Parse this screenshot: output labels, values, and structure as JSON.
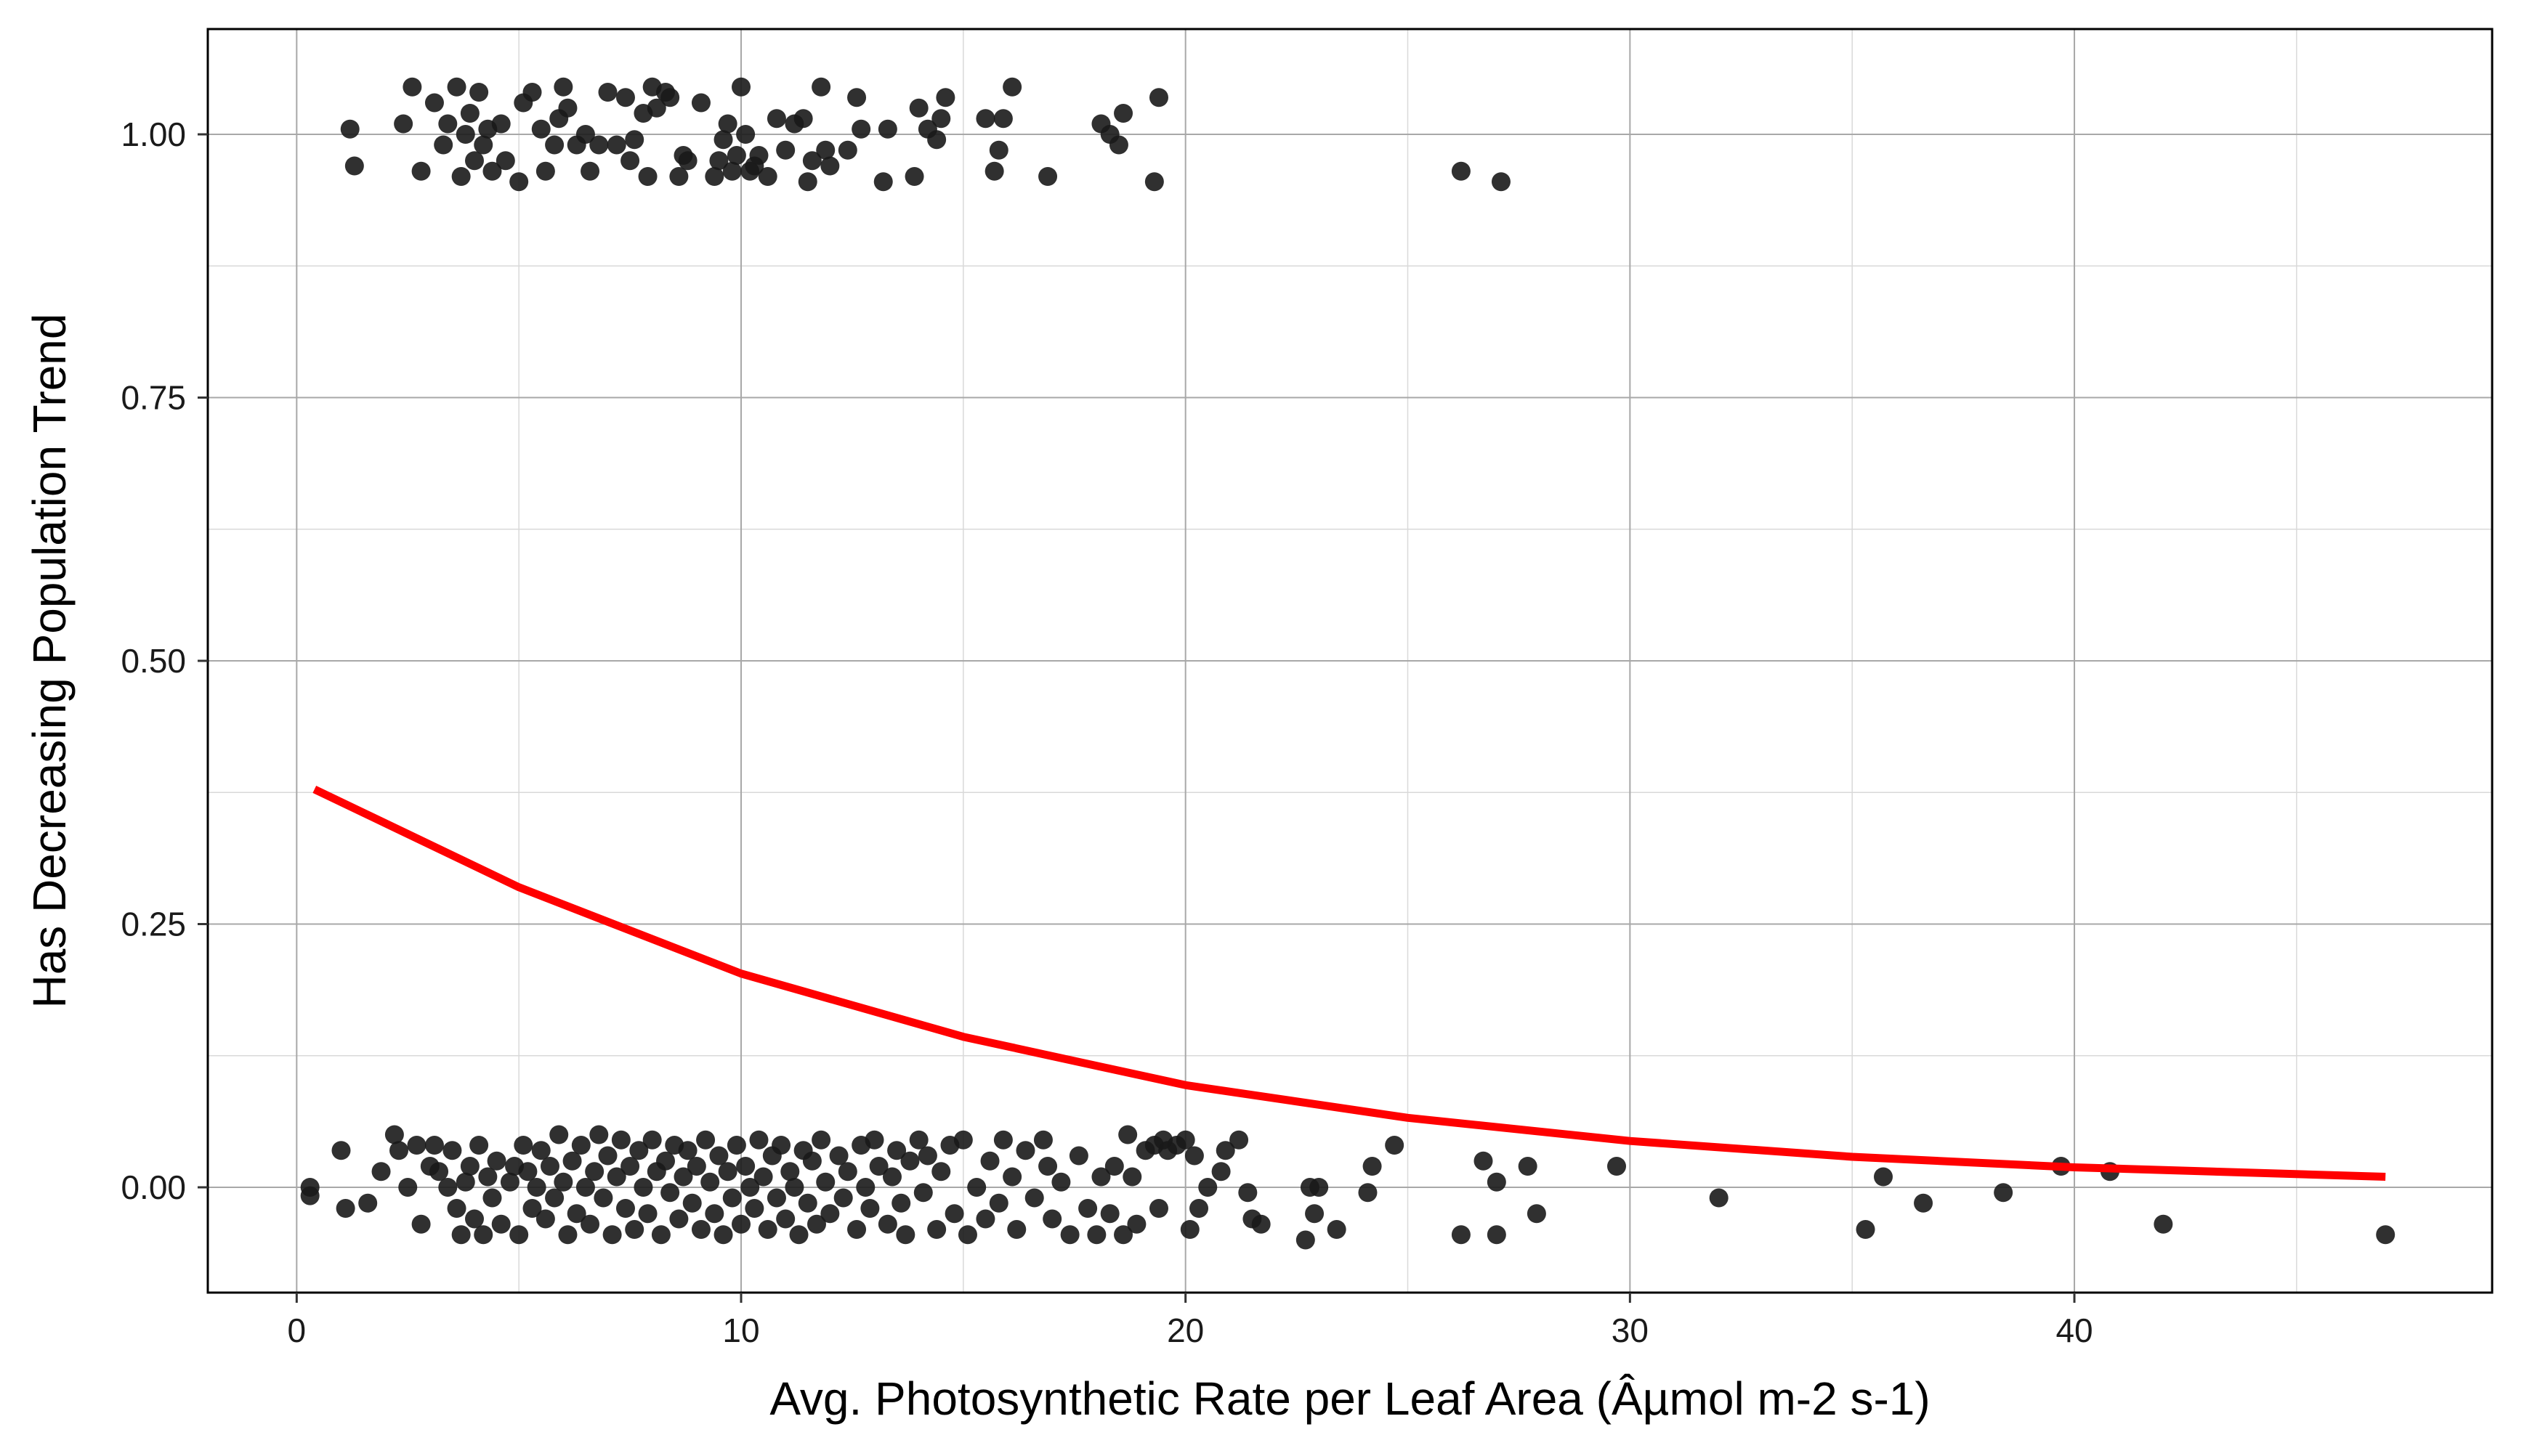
{
  "chart_data": {
    "type": "scatter",
    "title": "",
    "xlabel": "Avg. Photosynthetic Rate per Leaf Area (Âµmol m-2 s-1)",
    "ylabel": "Has Decreasing Population Trend",
    "xlim": [
      -2,
      49.4
    ],
    "ylim": [
      -0.1,
      1.1
    ],
    "x_ticks": [
      0,
      10,
      20,
      30,
      40
    ],
    "x_tick_labels": [
      "0",
      "10",
      "20",
      "30",
      "40"
    ],
    "y_ticks": [
      0,
      0.25,
      0.5,
      0.75,
      1.0
    ],
    "y_tick_labels": [
      "0.00",
      "0.25",
      "0.50",
      "0.75",
      "1.00"
    ],
    "x_minor_ticks": [
      5,
      15,
      25,
      35,
      45
    ],
    "y_minor_ticks": [
      0.125,
      0.375,
      0.625,
      0.875
    ],
    "grid": true,
    "legend": "none",
    "series": [
      {
        "kind": "points",
        "color": "#1a1a1a",
        "points": [
          [
            1.2,
            1.005
          ],
          [
            1.3,
            0.97
          ],
          [
            2.4,
            1.01
          ],
          [
            2.6,
            1.045
          ],
          [
            2.8,
            0.965
          ],
          [
            3.1,
            1.03
          ],
          [
            3.3,
            0.99
          ],
          [
            3.4,
            1.01
          ],
          [
            3.6,
            1.045
          ],
          [
            3.7,
            0.96
          ],
          [
            3.8,
            1.0
          ],
          [
            3.9,
            1.02
          ],
          [
            4.0,
            0.975
          ],
          [
            4.1,
            1.04
          ],
          [
            4.2,
            0.99
          ],
          [
            4.3,
            1.005
          ],
          [
            4.4,
            0.965
          ],
          [
            4.6,
            1.01
          ],
          [
            4.7,
            0.975
          ],
          [
            5.0,
            0.955
          ],
          [
            5.1,
            1.03
          ],
          [
            5.3,
            1.04
          ],
          [
            5.5,
            1.005
          ],
          [
            5.6,
            0.965
          ],
          [
            5.8,
            0.99
          ],
          [
            5.9,
            1.015
          ],
          [
            6.0,
            1.045
          ],
          [
            6.1,
            1.025
          ],
          [
            6.3,
            0.99
          ],
          [
            6.5,
            1.0
          ],
          [
            6.6,
            0.965
          ],
          [
            6.8,
            0.99
          ],
          [
            7.0,
            1.04
          ],
          [
            7.2,
            0.99
          ],
          [
            7.4,
            1.035
          ],
          [
            7.5,
            0.975
          ],
          [
            7.6,
            0.995
          ],
          [
            7.8,
            1.02
          ],
          [
            7.9,
            0.96
          ],
          [
            8.0,
            1.045
          ],
          [
            8.1,
            1.025
          ],
          [
            8.3,
            1.04
          ],
          [
            8.4,
            1.035
          ],
          [
            8.6,
            0.96
          ],
          [
            8.7,
            0.98
          ],
          [
            8.8,
            0.975
          ],
          [
            9.1,
            1.03
          ],
          [
            9.4,
            0.96
          ],
          [
            9.5,
            0.975
          ],
          [
            9.6,
            0.995
          ],
          [
            9.7,
            1.01
          ],
          [
            9.8,
            0.965
          ],
          [
            9.9,
            0.98
          ],
          [
            10.0,
            1.045
          ],
          [
            10.1,
            1.0
          ],
          [
            10.2,
            0.965
          ],
          [
            10.3,
            0.97
          ],
          [
            10.4,
            0.98
          ],
          [
            10.6,
            0.96
          ],
          [
            10.8,
            1.015
          ],
          [
            11.0,
            0.985
          ],
          [
            11.2,
            1.01
          ],
          [
            11.4,
            1.015
          ],
          [
            11.5,
            0.955
          ],
          [
            11.6,
            0.975
          ],
          [
            11.8,
            1.045
          ],
          [
            11.9,
            0.985
          ],
          [
            12.0,
            0.97
          ],
          [
            12.4,
            0.985
          ],
          [
            12.6,
            1.035
          ],
          [
            12.7,
            1.005
          ],
          [
            13.2,
            0.955
          ],
          [
            13.3,
            1.005
          ],
          [
            13.9,
            0.96
          ],
          [
            14.0,
            1.025
          ],
          [
            14.2,
            1.005
          ],
          [
            14.4,
            0.995
          ],
          [
            14.5,
            1.015
          ],
          [
            14.6,
            1.035
          ],
          [
            15.5,
            1.015
          ],
          [
            15.7,
            0.965
          ],
          [
            15.8,
            0.985
          ],
          [
            15.9,
            1.015
          ],
          [
            16.1,
            1.045
          ],
          [
            16.9,
            0.96
          ],
          [
            18.1,
            1.01
          ],
          [
            18.3,
            1.0
          ],
          [
            18.5,
            0.99
          ],
          [
            18.6,
            1.02
          ],
          [
            19.3,
            0.955
          ],
          [
            19.4,
            1.035
          ],
          [
            26.2,
            0.965
          ],
          [
            27.1,
            0.955
          ],
          [
            0.3,
            0.0
          ],
          [
            0.3,
            -0.008
          ],
          [
            1.0,
            0.035
          ],
          [
            1.1,
            -0.02
          ],
          [
            1.6,
            -0.015
          ],
          [
            1.9,
            0.015
          ],
          [
            2.2,
            0.05
          ],
          [
            2.3,
            0.035
          ],
          [
            2.5,
            0.0
          ],
          [
            2.7,
            0.04
          ],
          [
            2.8,
            -0.035
          ],
          [
            3.0,
            0.02
          ],
          [
            3.1,
            0.04
          ],
          [
            3.2,
            0.015
          ],
          [
            3.4,
            0.0
          ],
          [
            3.5,
            0.035
          ],
          [
            3.6,
            -0.02
          ],
          [
            3.7,
            -0.045
          ],
          [
            3.8,
            0.005
          ],
          [
            3.9,
            0.02
          ],
          [
            4.0,
            -0.03
          ],
          [
            4.1,
            0.04
          ],
          [
            4.2,
            -0.045
          ],
          [
            4.3,
            0.01
          ],
          [
            4.4,
            -0.01
          ],
          [
            4.5,
            0.025
          ],
          [
            4.6,
            -0.035
          ],
          [
            4.8,
            0.005
          ],
          [
            4.9,
            0.02
          ],
          [
            5.0,
            -0.045
          ],
          [
            5.1,
            0.04
          ],
          [
            5.2,
            0.015
          ],
          [
            5.3,
            -0.02
          ],
          [
            5.4,
            0.0
          ],
          [
            5.5,
            0.035
          ],
          [
            5.6,
            -0.03
          ],
          [
            5.7,
            0.02
          ],
          [
            5.8,
            -0.01
          ],
          [
            5.9,
            0.05
          ],
          [
            6.0,
            0.005
          ],
          [
            6.1,
            -0.045
          ],
          [
            6.2,
            0.025
          ],
          [
            6.3,
            -0.025
          ],
          [
            6.4,
            0.04
          ],
          [
            6.5,
            0.0
          ],
          [
            6.6,
            -0.035
          ],
          [
            6.7,
            0.015
          ],
          [
            6.8,
            0.05
          ],
          [
            6.9,
            -0.01
          ],
          [
            7.0,
            0.03
          ],
          [
            7.1,
            -0.045
          ],
          [
            7.2,
            0.01
          ],
          [
            7.3,
            0.045
          ],
          [
            7.4,
            -0.02
          ],
          [
            7.5,
            0.02
          ],
          [
            7.6,
            -0.04
          ],
          [
            7.7,
            0.035
          ],
          [
            7.8,
            0.0
          ],
          [
            7.9,
            -0.025
          ],
          [
            8.0,
            0.045
          ],
          [
            8.1,
            0.015
          ],
          [
            8.2,
            -0.045
          ],
          [
            8.3,
            0.025
          ],
          [
            8.4,
            -0.005
          ],
          [
            8.5,
            0.04
          ],
          [
            8.6,
            -0.03
          ],
          [
            8.7,
            0.01
          ],
          [
            8.8,
            0.035
          ],
          [
            8.9,
            -0.015
          ],
          [
            9.0,
            0.02
          ],
          [
            9.1,
            -0.04
          ],
          [
            9.2,
            0.045
          ],
          [
            9.3,
            0.005
          ],
          [
            9.4,
            -0.025
          ],
          [
            9.5,
            0.03
          ],
          [
            9.6,
            -0.045
          ],
          [
            9.7,
            0.015
          ],
          [
            9.8,
            -0.01
          ],
          [
            9.9,
            0.04
          ],
          [
            10.0,
            -0.035
          ],
          [
            10.1,
            0.02
          ],
          [
            10.2,
            0.0
          ],
          [
            10.3,
            -0.02
          ],
          [
            10.4,
            0.045
          ],
          [
            10.5,
            0.01
          ],
          [
            10.6,
            -0.04
          ],
          [
            10.7,
            0.03
          ],
          [
            10.8,
            -0.01
          ],
          [
            10.9,
            0.04
          ],
          [
            11.0,
            -0.03
          ],
          [
            11.1,
            0.015
          ],
          [
            11.2,
            0.0
          ],
          [
            11.3,
            -0.045
          ],
          [
            11.4,
            0.035
          ],
          [
            11.5,
            -0.015
          ],
          [
            11.6,
            0.025
          ],
          [
            11.7,
            -0.035
          ],
          [
            11.8,
            0.045
          ],
          [
            11.9,
            0.005
          ],
          [
            12.0,
            -0.025
          ],
          [
            12.2,
            0.03
          ],
          [
            12.3,
            -0.01
          ],
          [
            12.4,
            0.015
          ],
          [
            12.6,
            -0.04
          ],
          [
            12.7,
            0.04
          ],
          [
            12.8,
            0.0
          ],
          [
            12.9,
            -0.02
          ],
          [
            13.0,
            0.045
          ],
          [
            13.1,
            0.02
          ],
          [
            13.3,
            -0.035
          ],
          [
            13.4,
            0.01
          ],
          [
            13.5,
            0.035
          ],
          [
            13.6,
            -0.015
          ],
          [
            13.7,
            -0.045
          ],
          [
            13.8,
            0.025
          ],
          [
            14.0,
            0.045
          ],
          [
            14.1,
            -0.005
          ],
          [
            14.2,
            0.03
          ],
          [
            14.4,
            -0.04
          ],
          [
            14.5,
            0.015
          ],
          [
            14.7,
            0.04
          ],
          [
            14.8,
            -0.025
          ],
          [
            15.0,
            0.045
          ],
          [
            15.1,
            -0.045
          ],
          [
            15.3,
            0.0
          ],
          [
            15.5,
            -0.03
          ],
          [
            15.6,
            0.025
          ],
          [
            15.8,
            -0.015
          ],
          [
            15.9,
            0.045
          ],
          [
            16.1,
            0.01
          ],
          [
            16.2,
            -0.04
          ],
          [
            16.4,
            0.035
          ],
          [
            16.6,
            -0.01
          ],
          [
            16.8,
            0.045
          ],
          [
            16.9,
            0.02
          ],
          [
            17.0,
            -0.03
          ],
          [
            17.2,
            0.005
          ],
          [
            17.4,
            -0.045
          ],
          [
            17.6,
            0.03
          ],
          [
            17.8,
            -0.02
          ],
          [
            18.0,
            -0.045
          ],
          [
            18.1,
            0.01
          ],
          [
            18.3,
            -0.025
          ],
          [
            18.4,
            0.02
          ],
          [
            18.6,
            -0.045
          ],
          [
            18.7,
            0.05
          ],
          [
            18.8,
            0.01
          ],
          [
            18.9,
            -0.035
          ],
          [
            19.1,
            0.035
          ],
          [
            19.3,
            0.04
          ],
          [
            19.4,
            -0.02
          ],
          [
            19.5,
            0.045
          ],
          [
            19.6,
            0.035
          ],
          [
            19.8,
            0.04
          ],
          [
            20.0,
            0.045
          ],
          [
            20.1,
            -0.04
          ],
          [
            20.2,
            0.03
          ],
          [
            20.3,
            -0.02
          ],
          [
            20.5,
            0.0
          ],
          [
            20.8,
            0.015
          ],
          [
            20.9,
            0.035
          ],
          [
            21.2,
            0.045
          ],
          [
            21.4,
            -0.005
          ],
          [
            21.5,
            -0.03
          ],
          [
            21.7,
            -0.035
          ],
          [
            22.7,
            -0.05
          ],
          [
            22.8,
            0.0
          ],
          [
            22.9,
            -0.025
          ],
          [
            23.0,
            0.0
          ],
          [
            23.4,
            -0.04
          ],
          [
            24.1,
            -0.005
          ],
          [
            24.2,
            0.02
          ],
          [
            24.7,
            0.04
          ],
          [
            26.2,
            -0.045
          ],
          [
            26.7,
            0.025
          ],
          [
            27.0,
            0.005
          ],
          [
            27.0,
            -0.045
          ],
          [
            27.7,
            0.02
          ],
          [
            27.9,
            -0.025
          ],
          [
            29.7,
            0.02
          ],
          [
            32.0,
            -0.01
          ],
          [
            35.3,
            -0.04
          ],
          [
            35.7,
            0.01
          ],
          [
            36.6,
            -0.015
          ],
          [
            38.4,
            -0.005
          ],
          [
            39.7,
            0.02
          ],
          [
            40.8,
            0.015
          ],
          [
            42.0,
            -0.035
          ],
          [
            47.0,
            -0.045
          ]
        ]
      },
      {
        "kind": "line",
        "color": "#ff0000",
        "points": [
          [
            0.4,
            0.378
          ],
          [
            5,
            0.285
          ],
          [
            10,
            0.203
          ],
          [
            15,
            0.143
          ],
          [
            20,
            0.097
          ],
          [
            25,
            0.066
          ],
          [
            30,
            0.044
          ],
          [
            35,
            0.029
          ],
          [
            40,
            0.019
          ],
          [
            47,
            0.01
          ]
        ]
      }
    ]
  }
}
